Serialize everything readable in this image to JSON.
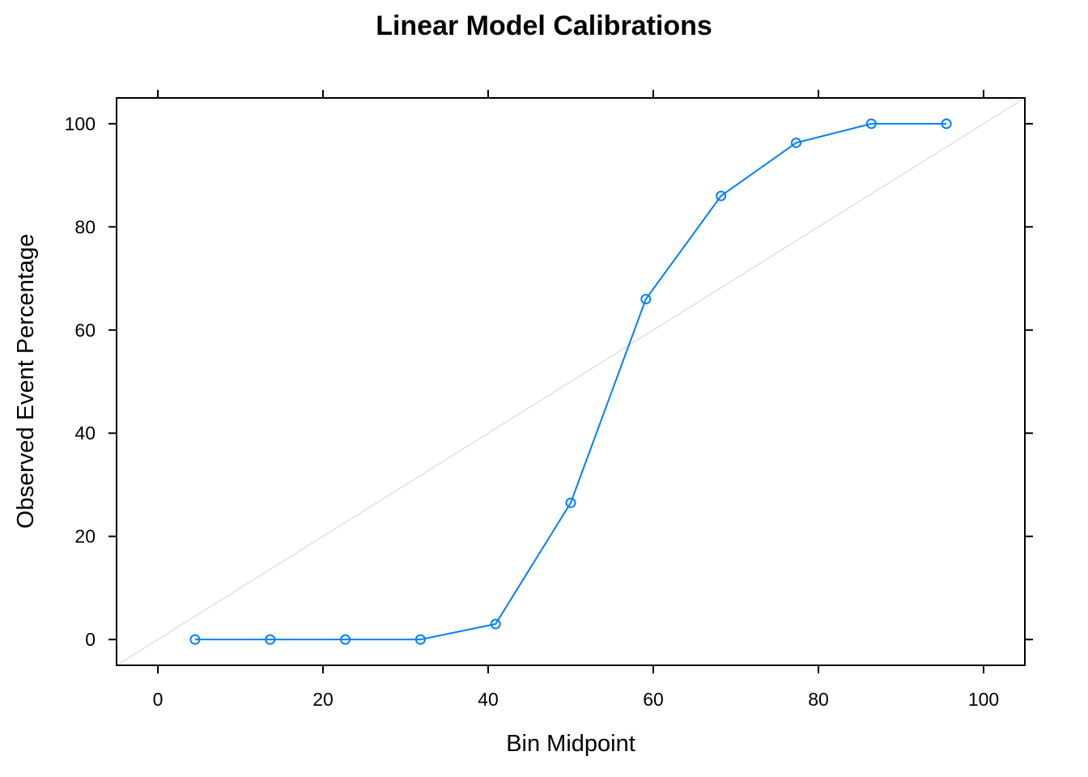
{
  "chart_data": {
    "type": "line",
    "title": "Linear Model Calibrations",
    "xlabel": "Bin Midpoint",
    "ylabel": "Observed Event Percentage",
    "xlim": [
      -5,
      105
    ],
    "ylim": [
      -5,
      105
    ],
    "x_ticks": [
      "0",
      "20",
      "40",
      "60",
      "80",
      "100"
    ],
    "y_ticks": [
      "0",
      "20",
      "40",
      "60",
      "80",
      "100"
    ],
    "grid": false,
    "reference_line": {
      "from": [
        -5,
        -5
      ],
      "to": [
        105,
        105
      ],
      "color": "#e0e0e0"
    },
    "series": [
      {
        "name": "Linear Model",
        "color": "#0080ff",
        "marker": "open-circle",
        "x": [
          4.5,
          13.6,
          22.7,
          31.8,
          40.9,
          50.0,
          59.1,
          68.2,
          77.3,
          86.4,
          95.5
        ],
        "y": [
          0,
          0,
          0,
          0,
          3,
          26.5,
          66,
          86,
          96.3,
          100,
          100
        ]
      }
    ]
  }
}
